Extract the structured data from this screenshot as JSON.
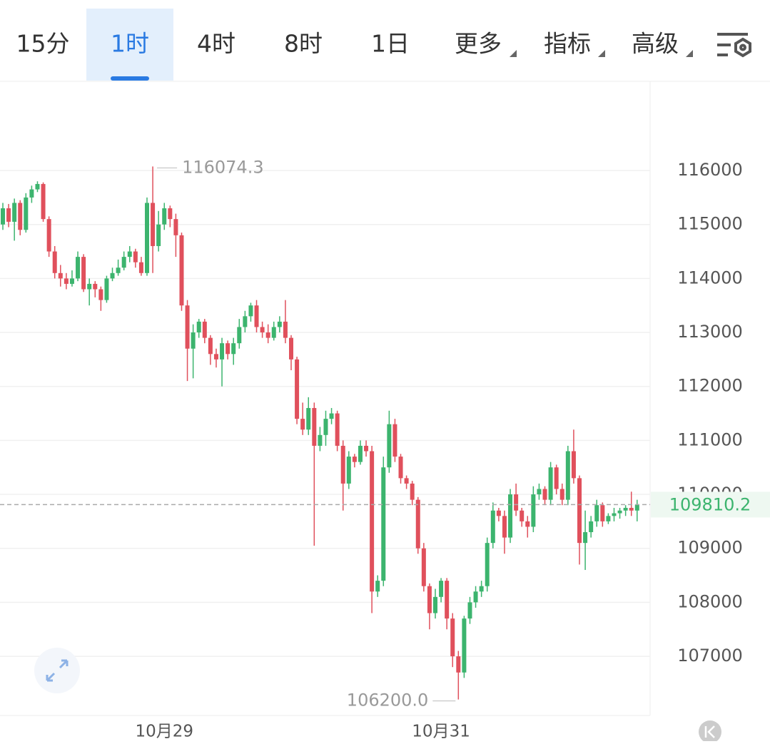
{
  "toolbar": {
    "tabs": [
      "15分",
      "1时",
      "4时",
      "8时",
      "1日",
      "更多",
      "指标",
      "高级"
    ],
    "selected": 1
  },
  "chart_data": {
    "type": "candlestick",
    "categories": [
      null,
      null,
      null,
      null,
      null,
      null,
      null,
      null,
      null,
      null,
      null,
      null,
      null,
      null,
      null,
      null,
      null,
      null,
      null,
      null,
      null,
      null,
      null,
      null,
      null,
      null,
      null,
      null,
      "10月29",
      null,
      null,
      null,
      null,
      null,
      null,
      null,
      null,
      null,
      null,
      null,
      null,
      null,
      null,
      null,
      null,
      null,
      null,
      null,
      null,
      null,
      null,
      null,
      null,
      null,
      null,
      null,
      null,
      null,
      null,
      null,
      null,
      null,
      null,
      null,
      null,
      null,
      null,
      null,
      null,
      null,
      null,
      null,
      null,
      null,
      null,
      null,
      "10月31",
      null,
      null,
      null,
      null,
      null,
      null,
      null,
      null,
      null,
      null,
      null,
      null,
      null,
      null,
      null,
      null,
      null,
      null,
      null,
      null,
      null,
      null,
      null,
      null,
      null,
      null,
      null,
      null,
      null,
      null,
      null,
      null,
      null,
      null
    ],
    "candles": {
      "open": [
        115000,
        115300,
        115050,
        115400,
        114900,
        115500,
        115650,
        115750,
        115100,
        114500,
        114100,
        114000,
        113900,
        114000,
        114400,
        113800,
        113900,
        113800,
        113600,
        114000,
        114100,
        114200,
        114400,
        114500,
        114300,
        114100,
        115400,
        114600,
        115000,
        115300,
        115100,
        114800,
        113500,
        112700,
        113000,
        113200,
        112900,
        112600,
        112500,
        112800,
        112600,
        112800,
        113100,
        113300,
        113500,
        113100,
        113000,
        112900,
        113100,
        113200,
        112900,
        112500,
        111400,
        111200,
        111600,
        110900,
        111100,
        111400,
        111500,
        110900,
        110200,
        110700,
        110600,
        110900,
        110800,
        108200,
        108400,
        110500,
        111300,
        110700,
        110300,
        110200,
        109900,
        109000,
        108300,
        107800,
        108100,
        108400,
        107700,
        107000,
        106700,
        107700,
        108000,
        108200,
        108300,
        109100,
        109700,
        109600,
        109200,
        110000,
        109700,
        109500,
        109400,
        110000,
        110100,
        109900,
        110500,
        110100,
        109900,
        110800,
        110300,
        109100,
        109300,
        109500,
        109800,
        109500,
        109600,
        109650,
        109700,
        109750,
        109700
      ],
      "high": [
        115400,
        115380,
        115480,
        115450,
        115580,
        115720,
        115800,
        115780,
        115150,
        114600,
        114250,
        114100,
        114150,
        114500,
        114450,
        114000,
        113950,
        113850,
        114050,
        114200,
        114350,
        114500,
        114600,
        114550,
        114400,
        115500,
        116074.3,
        115250,
        115400,
        115350,
        115200,
        114850,
        113600,
        113150,
        113250,
        113250,
        112950,
        112700,
        112900,
        112850,
        112900,
        113250,
        113400,
        113550,
        113600,
        113200,
        113150,
        113200,
        113300,
        113600,
        112950,
        112550,
        111700,
        111800,
        111700,
        111250,
        111550,
        111600,
        111550,
        111000,
        110800,
        110750,
        111000,
        111000,
        110900,
        108500,
        110700,
        111550,
        111400,
        110750,
        110350,
        110250,
        109950,
        109100,
        108350,
        108250,
        108450,
        108450,
        107800,
        107100,
        107750,
        108100,
        108300,
        108400,
        109200,
        109850,
        109750,
        109700,
        110100,
        110200,
        109750,
        109600,
        110150,
        110200,
        110150,
        110600,
        110550,
        110200,
        110900,
        111200,
        110350,
        109700,
        109600,
        109900,
        109850,
        109650,
        109750,
        109750,
        109800,
        110050,
        109900
      ],
      "low": [
        114900,
        114950,
        114700,
        114800,
        114850,
        115400,
        115600,
        115050,
        114400,
        114000,
        113850,
        113800,
        113850,
        113950,
        113750,
        113500,
        113650,
        113400,
        113550,
        113950,
        114050,
        114150,
        114300,
        114200,
        114050,
        114050,
        114100,
        114500,
        114900,
        114950,
        114400,
        113400,
        112100,
        112150,
        112900,
        112800,
        112400,
        112350,
        112000,
        112500,
        112400,
        112700,
        113000,
        113200,
        113000,
        112900,
        112800,
        112850,
        113000,
        112800,
        112300,
        111300,
        111100,
        111100,
        109049,
        110800,
        110900,
        111300,
        110800,
        109700,
        110100,
        110500,
        110550,
        110700,
        107800,
        108100,
        108300,
        110400,
        110600,
        110200,
        110100,
        109800,
        108900,
        108200,
        107500,
        107700,
        108000,
        107500,
        106800,
        106200,
        106600,
        107600,
        107900,
        108100,
        108200,
        109000,
        109500,
        108900,
        109100,
        109600,
        109400,
        109200,
        109300,
        109900,
        109800,
        109800,
        110000,
        109800,
        109800,
        110200,
        108700,
        108600,
        109200,
        109400,
        109400,
        109450,
        109500,
        109550,
        109600,
        109600,
        109500
      ],
      "close": [
        115300,
        115050,
        115400,
        114900,
        115500,
        115650,
        115750,
        115100,
        114500,
        114100,
        114000,
        113900,
        114000,
        114400,
        113800,
        113900,
        113800,
        113600,
        114000,
        114100,
        114200,
        114400,
        114500,
        114300,
        114100,
        115400,
        114600,
        115000,
        115300,
        115100,
        114800,
        113500,
        112700,
        113000,
        113200,
        112900,
        112600,
        112500,
        112800,
        112600,
        112800,
        113100,
        113300,
        113500,
        113100,
        113000,
        112900,
        113100,
        113200,
        112900,
        112500,
        111400,
        111200,
        111600,
        110900,
        111100,
        111400,
        111500,
        110900,
        110200,
        110700,
        110600,
        110900,
        110800,
        108200,
        108400,
        110500,
        111300,
        110700,
        110300,
        110200,
        109900,
        109000,
        108300,
        107800,
        108100,
        108400,
        107700,
        107000,
        106700,
        107700,
        108000,
        108200,
        108300,
        109100,
        109700,
        109600,
        109200,
        110000,
        109700,
        109500,
        109400,
        110000,
        110100,
        109900,
        110500,
        110100,
        109900,
        110800,
        110300,
        109100,
        109300,
        109500,
        109800,
        109500,
        109600,
        109650,
        109700,
        109750,
        109700,
        109810.2
      ]
    },
    "up_color": "#3cb46e",
    "down_color": "#e0505c",
    "min_label": "106200.0",
    "ylim": [
      105904,
      117639
    ],
    "yticks": [
      107000,
      108000,
      109000,
      110000,
      111000,
      112000,
      113000,
      114000,
      115000,
      116000
    ],
    "grid": true
  }
}
